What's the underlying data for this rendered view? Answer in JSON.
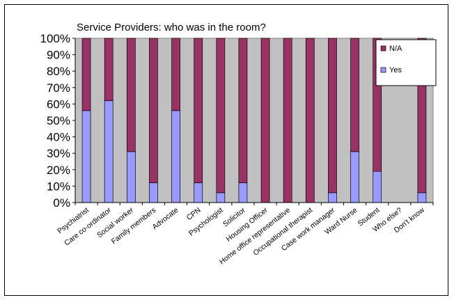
{
  "chart_data": {
    "type": "bar",
    "stacked": true,
    "percent": true,
    "title": "Service Providers: who was in the room?",
    "xlabel": "",
    "ylabel": "",
    "ylim": [
      0,
      100
    ],
    "y_ticks": [
      "0%",
      "10%",
      "20%",
      "30%",
      "40%",
      "50%",
      "60%",
      "70%",
      "80%",
      "90%",
      "100%"
    ],
    "grid": false,
    "legend_position": "top-right",
    "plot_background": "#c0c0c0",
    "categories": [
      "Psychiatrist",
      "Care co-ordinator",
      "Social worker",
      "Family members",
      "Advocate",
      "CPN",
      "Psychologist",
      "Solicitor",
      "Housing Officer",
      "Home office representative",
      "Occupational therapist",
      "Case work manager",
      "Ward Nurse",
      "Student",
      "Who else?",
      "Don't know"
    ],
    "series": [
      {
        "name": "Yes",
        "color": "#9999ff",
        "values": [
          56,
          62,
          31,
          12,
          56,
          12,
          6,
          12,
          0,
          0,
          0,
          6,
          31,
          19,
          0,
          6
        ]
      },
      {
        "name": "N/A",
        "color": "#993366",
        "values": [
          44,
          38,
          69,
          88,
          44,
          88,
          94,
          88,
          100,
          100,
          100,
          94,
          69,
          81,
          0,
          94
        ]
      }
    ],
    "legend_order": [
      "N/A",
      "Yes"
    ]
  }
}
